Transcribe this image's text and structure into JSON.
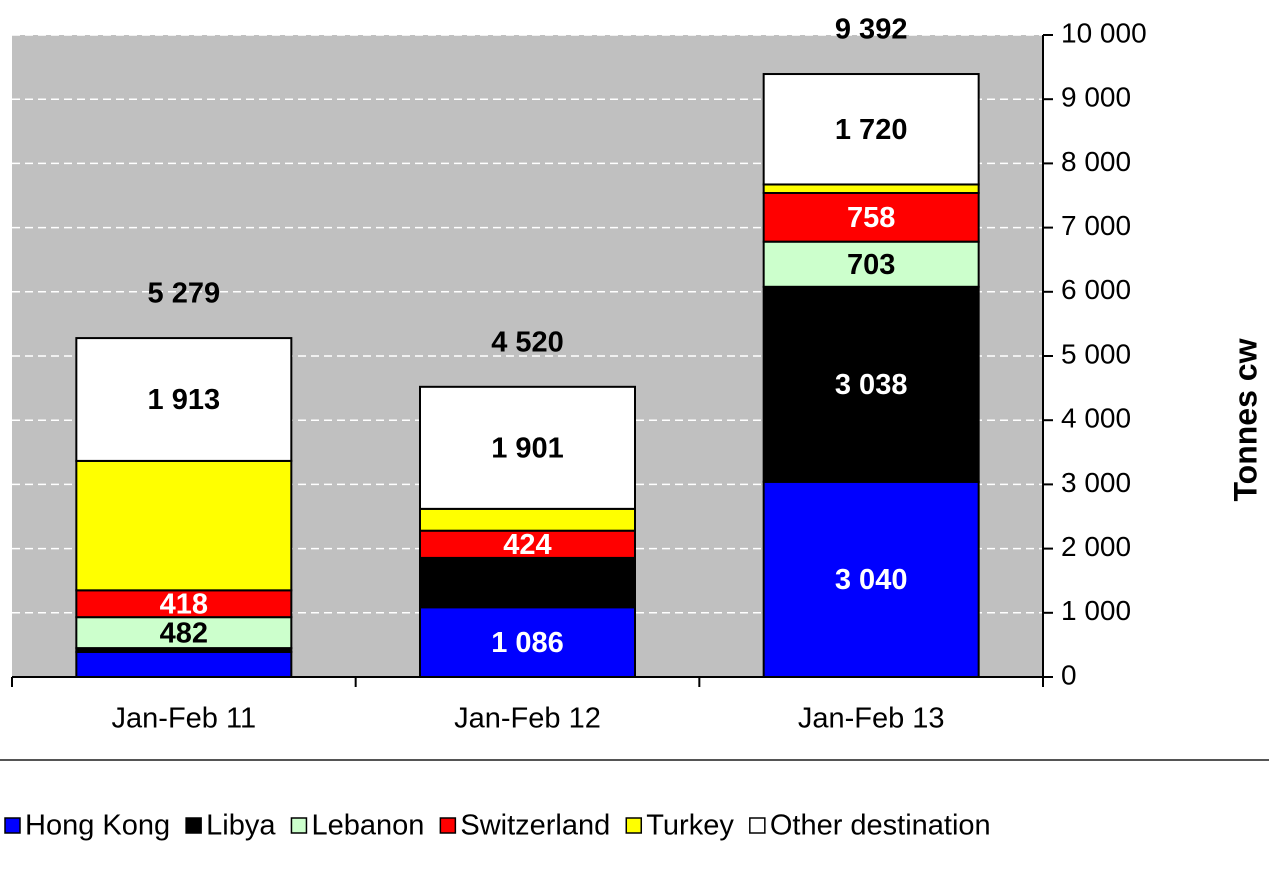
{
  "chart_data": {
    "type": "stacked_bar",
    "categories": [
      "Jan-Feb 11",
      "Jan-Feb 12",
      "Jan-Feb 13"
    ],
    "series": [
      {
        "name": "Hong Kong",
        "color": "#0000ff",
        "label_color": "#ffffff",
        "values": [
          390,
          1086,
          3040
        ],
        "value_labels": [
          null,
          "1 086",
          "3 040"
        ]
      },
      {
        "name": "Libya",
        "color": "#000000",
        "label_color": "#ffffff",
        "values": [
          60,
          769,
          3038
        ],
        "value_labels": [
          null,
          null,
          "3 038"
        ]
      },
      {
        "name": "Lebanon",
        "color": "#ccffcc",
        "label_color": "#000000",
        "values": [
          482,
          0,
          703
        ],
        "value_labels": [
          "482",
          null,
          "703"
        ]
      },
      {
        "name": "Switzerland",
        "color": "#ff0000",
        "label_color": "#ffffff",
        "values": [
          418,
          424,
          758
        ],
        "value_labels": [
          "418",
          "424",
          "758"
        ]
      },
      {
        "name": "Turkey",
        "color": "#ffff00",
        "label_color": "#000000",
        "values": [
          2016,
          340,
          133
        ],
        "value_labels": [
          null,
          null,
          null
        ]
      },
      {
        "name": "Other destination",
        "color": "#ffffff",
        "label_color": "#000000",
        "values": [
          1913,
          1901,
          1720
        ],
        "value_labels": [
          "1 913",
          "1 901",
          "1 720"
        ]
      }
    ],
    "totals": [
      5279,
      4520,
      9392
    ],
    "total_labels": [
      "5 279",
      "4 520",
      "9 392"
    ],
    "y_label": "Tonnes cw",
    "ylim": [
      0,
      10000
    ],
    "yticks": [
      0,
      {
        "value": 1000,
        "label": "1 000"
      },
      {
        "value": 2000,
        "label": "2 000"
      },
      {
        "value": 3000,
        "label": "3 000"
      },
      {
        "value": 4000,
        "label": "4 000"
      },
      {
        "value": 5000,
        "label": "5 000"
      },
      {
        "value": 6000,
        "label": "6 000"
      },
      {
        "value": 7000,
        "label": "7 000"
      },
      {
        "value": 8000,
        "label": "8 000"
      },
      {
        "value": 9000,
        "label": "9 000"
      },
      {
        "value": 10000,
        "label": "10 000"
      }
    ],
    "grid": true,
    "legend": "bottom"
  }
}
